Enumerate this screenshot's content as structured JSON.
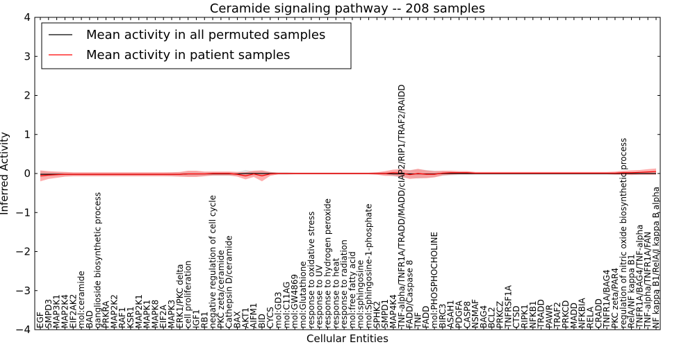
{
  "chart_data": {
    "type": "line",
    "title": "Ceramide signaling pathway -- 208 samples",
    "xlabel": "Cellular Entities",
    "ylabel": "Inferred Activity",
    "ylim": [
      -4,
      4
    ],
    "yticks": [
      -4,
      -3,
      -2,
      -1,
      0,
      1,
      2,
      3,
      4
    ],
    "ytick_labels": [
      "−4",
      "−3",
      "−2",
      "−1",
      "0",
      "1",
      "2",
      "3",
      "4"
    ],
    "grid": false,
    "legend_position": "top-left",
    "categories": [
      "EGF",
      "SMPD3",
      "MAP3K1",
      "MAP2K4",
      "EIF2AK2",
      "mol:ceramide",
      "BAD",
      "ganglioside biosynthetic process",
      "PRKRA",
      "MAP2K2",
      "RAF1",
      "KSR1",
      "MAP2K1",
      "MAPK1",
      "MAPK8",
      "EIF2A",
      "MAPK3",
      "ERK1/PKC delta",
      "cell proliferation",
      "IGF1",
      "RB1",
      "negative regulation of cell cycle",
      "PKC zeta/ceramide",
      "Cathepsin D/ceramide",
      "BAX",
      "AKT1",
      "AIFM1",
      "BID",
      "CYCS",
      "mol:GD3",
      "mol:C11AG",
      "mol:GW4869",
      "mol:Glutathione",
      "response to oxidative stress",
      "response to UV",
      "response to hydrogen peroxide",
      "response to heat",
      "response to radiation",
      "mol:free fatty acid",
      "mol:sphingosine",
      "mol:Sphingosine-1-phosphate",
      "SPHK2",
      "SMPD1",
      "MAP4K4",
      "TNF-alpha/TNFR1A/TRADD/MADD/cIAP2/RIP1/TRAF2/RAIDD",
      "FADD/Caspase 8",
      "TNF",
      "FADD",
      "mol:PHOSPHOCHOLINE",
      "BIRC3",
      "ASAH1",
      "PDGFA",
      "CASP8",
      "NSMAF",
      "BAG4",
      "BCL2",
      "PRKCZ",
      "TNFRSF1A",
      "CTSD",
      "RIPK1",
      "NFKB1",
      "TRADD",
      "PAWR",
      "TRAF2",
      "PRKCD",
      "MADD",
      "NFKBIA",
      "RELA",
      "CRADD",
      "TNFR1A/BAG4",
      "PKC zeta/PAR4",
      "regulation of nitric oxide biosynthetic process",
      "RelA/NF kappa B1",
      "TNFR1A/BAG4/TNF-alpha",
      "TNF-alpha/TNFR1A/FAN",
      "NF kappa B1/RelA/I kappa B alpha"
    ],
    "series": [
      {
        "name": "Mean activity in all permuted samples",
        "color": "#000000",
        "values": [
          -0.02,
          -0.02,
          -0.02,
          -0.02,
          -0.02,
          -0.02,
          -0.02,
          -0.02,
          -0.02,
          -0.02,
          -0.02,
          -0.02,
          -0.02,
          -0.02,
          -0.02,
          -0.02,
          -0.02,
          -0.02,
          -0.01,
          -0.01,
          -0.01,
          -0.01,
          -0.01,
          -0.01,
          -0.01,
          0.0,
          0.0,
          0.0,
          0.0,
          0.0,
          0.0,
          0.0,
          0.0,
          0.0,
          0.0,
          0.0,
          0.0,
          0.0,
          0.0,
          0.0,
          0.0,
          0.0,
          0.0,
          -0.01,
          -0.01,
          -0.01,
          -0.01,
          -0.01,
          -0.01,
          0.0,
          0.0,
          0.0,
          0.0,
          0.0,
          0.0,
          0.0,
          0.0,
          0.0,
          0.0,
          0.0,
          0.0,
          0.0,
          0.0,
          0.0,
          0.0,
          0.0,
          0.0,
          0.0,
          0.0,
          0.0,
          0.0,
          0.0,
          0.0,
          0.0,
          0.0,
          0.0
        ],
        "band_width": [
          0.08,
          0.06,
          0.05,
          0.05,
          0.04,
          0.04,
          0.04,
          0.04,
          0.04,
          0.04,
          0.04,
          0.04,
          0.04,
          0.04,
          0.04,
          0.04,
          0.05,
          0.05,
          0.06,
          0.06,
          0.05,
          0.05,
          0.05,
          0.05,
          0.05,
          0.09,
          0.06,
          0.07,
          0.04,
          0.03,
          0.03,
          0.02,
          0.02,
          0.02,
          0.02,
          0.02,
          0.02,
          0.02,
          0.02,
          0.02,
          0.02,
          0.03,
          0.04,
          0.06,
          0.09,
          0.1,
          0.12,
          0.1,
          0.08,
          0.06,
          0.05,
          0.04,
          0.04,
          0.03,
          0.03,
          0.03,
          0.03,
          0.03,
          0.03,
          0.03,
          0.03,
          0.03,
          0.03,
          0.03,
          0.03,
          0.03,
          0.03,
          0.03,
          0.03,
          0.03,
          0.03,
          0.03,
          0.03,
          0.03,
          0.03,
          0.03
        ]
      },
      {
        "name": "Mean activity in patient samples",
        "color": "#ff0000",
        "values": [
          -0.06,
          -0.04,
          -0.03,
          -0.02,
          -0.02,
          -0.02,
          -0.02,
          -0.02,
          -0.02,
          -0.02,
          -0.02,
          -0.02,
          -0.02,
          -0.02,
          -0.02,
          -0.02,
          -0.02,
          -0.02,
          -0.01,
          -0.01,
          -0.01,
          0.0,
          0.0,
          0.0,
          -0.02,
          -0.06,
          -0.01,
          -0.06,
          -0.01,
          0.0,
          0.0,
          0.0,
          0.0,
          0.0,
          0.0,
          0.0,
          0.0,
          0.0,
          0.0,
          0.0,
          0.0,
          0.0,
          0.0,
          0.02,
          0.01,
          -0.03,
          0.0,
          -0.02,
          -0.02,
          0.01,
          0.02,
          0.02,
          0.02,
          0.01,
          0.01,
          0.01,
          0.01,
          0.01,
          0.01,
          0.01,
          0.01,
          0.01,
          0.01,
          0.01,
          0.01,
          0.01,
          0.01,
          0.01,
          0.01,
          0.01,
          0.01,
          0.02,
          0.02,
          0.03,
          0.04,
          0.05
        ],
        "band_width": [
          0.14,
          0.1,
          0.08,
          0.06,
          0.05,
          0.05,
          0.05,
          0.05,
          0.05,
          0.05,
          0.05,
          0.05,
          0.05,
          0.05,
          0.05,
          0.05,
          0.05,
          0.06,
          0.08,
          0.08,
          0.06,
          0.05,
          0.05,
          0.05,
          0.06,
          0.09,
          0.08,
          0.14,
          0.05,
          0.02,
          0.02,
          0.02,
          0.02,
          0.02,
          0.02,
          0.02,
          0.02,
          0.02,
          0.02,
          0.02,
          0.02,
          0.03,
          0.06,
          0.08,
          0.1,
          0.11,
          0.12,
          0.1,
          0.08,
          0.06,
          0.05,
          0.04,
          0.04,
          0.03,
          0.03,
          0.03,
          0.03,
          0.03,
          0.03,
          0.03,
          0.03,
          0.03,
          0.03,
          0.03,
          0.03,
          0.03,
          0.03,
          0.03,
          0.03,
          0.03,
          0.04,
          0.05,
          0.06,
          0.06,
          0.07,
          0.08
        ]
      }
    ]
  }
}
